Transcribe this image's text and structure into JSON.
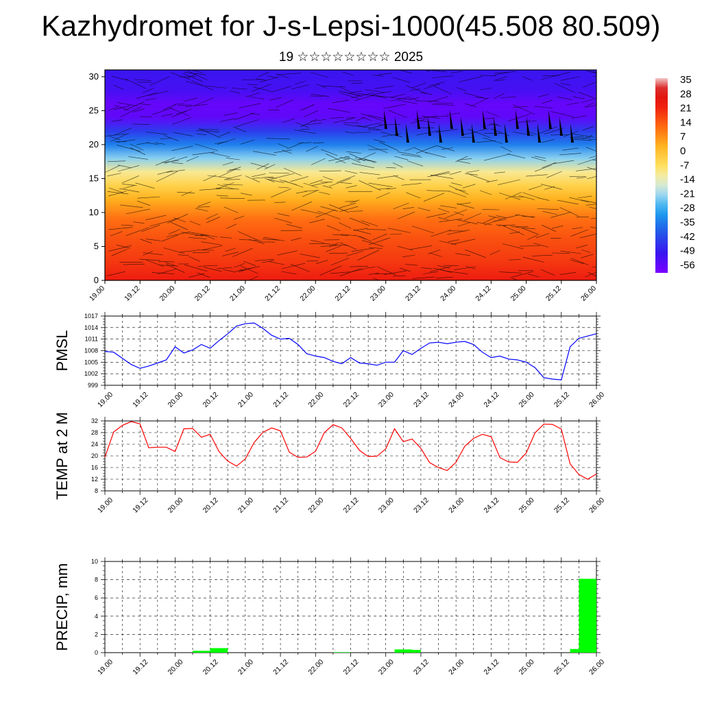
{
  "title": "Kazhydromet for J-s-Lepsi-1000(45.508 80.509)",
  "subtitle": "19 ☆☆☆☆☆☆☆☆ 2025",
  "x_ticks": [
    "19.00",
    "19.12",
    "20.00",
    "20.12",
    "21.00",
    "21.12",
    "22.00",
    "22.12",
    "23.00",
    "23.12",
    "24.00",
    "24.12",
    "25.00",
    "25.12",
    "26.00"
  ],
  "chart_data": [
    {
      "type": "heatmap",
      "name": "cross-section",
      "y_ticks": [
        "0",
        "5",
        "10",
        "15",
        "20",
        "25",
        "30"
      ],
      "ylim": [
        0,
        31
      ],
      "colorbar_levels": [
        "35",
        "28",
        "21",
        "14",
        "7",
        "0",
        "-7",
        "-14",
        "-21",
        "-28",
        "-35",
        "-42",
        "-49",
        "-56"
      ],
      "colorbar_min": -60,
      "colorbar_max": 38,
      "temperature_profile": [
        {
          "y": 0,
          "t": 24
        },
        {
          "y": 3,
          "t": 20
        },
        {
          "y": 6,
          "t": 17
        },
        {
          "y": 9,
          "t": 13
        },
        {
          "y": 12,
          "t": 4
        },
        {
          "y": 14,
          "t": -3
        },
        {
          "y": 16,
          "t": -10
        },
        {
          "y": 18,
          "t": -22
        },
        {
          "y": 20,
          "t": -34
        },
        {
          "y": 22,
          "t": -44
        },
        {
          "y": 24,
          "t": -56
        },
        {
          "y": 26,
          "t": -57
        },
        {
          "y": 28,
          "t": -52
        },
        {
          "y": 31,
          "t": -50
        }
      ]
    },
    {
      "type": "line",
      "ylabel": "PMSL",
      "y_ticks": [
        "999",
        "1002",
        "1005",
        "1008",
        "1011",
        "1014",
        "1017"
      ],
      "ylim": [
        999,
        1017
      ],
      "color": "#0000ff",
      "x": [
        0,
        0.25,
        0.5,
        0.75,
        1,
        1.25,
        1.5,
        1.75,
        2,
        2.25,
        2.5,
        2.75,
        3,
        3.25,
        3.5,
        3.75,
        4,
        4.25,
        4.5,
        4.75,
        5,
        5.25,
        5.5,
        5.75,
        6,
        6.25,
        6.5,
        6.75,
        7,
        7.25,
        7.5,
        7.75,
        8,
        8.25,
        8.5,
        8.75,
        9,
        9.25,
        9.5,
        9.75,
        10,
        10.25,
        10.5,
        10.75,
        11,
        11.25,
        11.5,
        11.75,
        12,
        12.25,
        12.5,
        12.75,
        13,
        13.25,
        13.5,
        13.75,
        14
      ],
      "values": [
        1007.8,
        1007.6,
        1006.0,
        1004.4,
        1003.4,
        1004.0,
        1004.8,
        1005.6,
        1009.0,
        1007.4,
        1008.2,
        1009.6,
        1008.6,
        1010.6,
        1012.4,
        1014.4,
        1015.0,
        1015.2,
        1013.8,
        1012.0,
        1011.0,
        1011.2,
        1009.6,
        1007.2,
        1006.6,
        1006.2,
        1005.2,
        1004.6,
        1006.2,
        1004.8,
        1004.6,
        1004.2,
        1005.0,
        1005.0,
        1008.0,
        1007.0,
        1008.6,
        1010.0,
        1010.2,
        1009.8,
        1010.2,
        1010.4,
        1009.6,
        1007.6,
        1006.2,
        1006.6,
        1005.8,
        1005.6,
        1005.0,
        1003.6,
        1001.0,
        1000.6,
        1000.4,
        1009.0,
        1011.2,
        1011.8,
        1012.4
      ]
    },
    {
      "type": "line",
      "ylabel": "TEMP at 2 M",
      "y_ticks": [
        "8",
        "12",
        "16",
        "20",
        "24",
        "28",
        "32"
      ],
      "ylim": [
        8,
        32
      ],
      "color": "#ff0000",
      "x": [
        0,
        0.25,
        0.5,
        0.75,
        1,
        1.25,
        1.5,
        1.75,
        2,
        2.25,
        2.5,
        2.75,
        3,
        3.25,
        3.5,
        3.75,
        4,
        4.25,
        4.5,
        4.75,
        5,
        5.25,
        5.5,
        5.75,
        6,
        6.25,
        6.5,
        6.75,
        7,
        7.25,
        7.5,
        7.75,
        8,
        8.25,
        8.5,
        8.75,
        9,
        9.25,
        9.5,
        9.75,
        10,
        10.25,
        10.5,
        10.75,
        11,
        11.25,
        11.5,
        11.75,
        12,
        12.25,
        12.5,
        12.75,
        13,
        13.25,
        13.5,
        13.75,
        14
      ],
      "values": [
        19.5,
        28.2,
        30.5,
        31.8,
        31.0,
        22.8,
        23.0,
        23.0,
        21.5,
        29.3,
        29.4,
        26.4,
        27.4,
        21.5,
        18.2,
        16.5,
        19.0,
        24.6,
        28.1,
        29.6,
        28.6,
        21.3,
        19.5,
        19.6,
        21.6,
        28.0,
        30.7,
        29.6,
        26.0,
        21.9,
        19.8,
        19.9,
        22.4,
        29.3,
        24.9,
        25.8,
        22.6,
        17.7,
        16.0,
        15.0,
        17.8,
        23.3,
        26.0,
        27.4,
        26.6,
        19.4,
        17.9,
        17.8,
        21.0,
        27.9,
        30.9,
        30.8,
        29.2,
        17.3,
        13.6,
        12.0,
        13.8
      ]
    },
    {
      "type": "bar",
      "ylabel": "PRECIP, mm",
      "y_ticks": [
        "0",
        "2",
        "4",
        "6",
        "8",
        "10"
      ],
      "ylim": [
        0,
        10
      ],
      "color": "#00ff00",
      "bars": [
        {
          "x": 3.0,
          "value": 0.2
        },
        {
          "x": 3.5,
          "value": 0.5
        },
        {
          "x": 7.0,
          "value": 0.05
        },
        {
          "x": 8.75,
          "value": 0.35
        },
        {
          "x": 9.0,
          "value": 0.3
        },
        {
          "x": 13.75,
          "value": 0.4
        },
        {
          "x": 14.0,
          "value": 8.1
        }
      ]
    }
  ]
}
